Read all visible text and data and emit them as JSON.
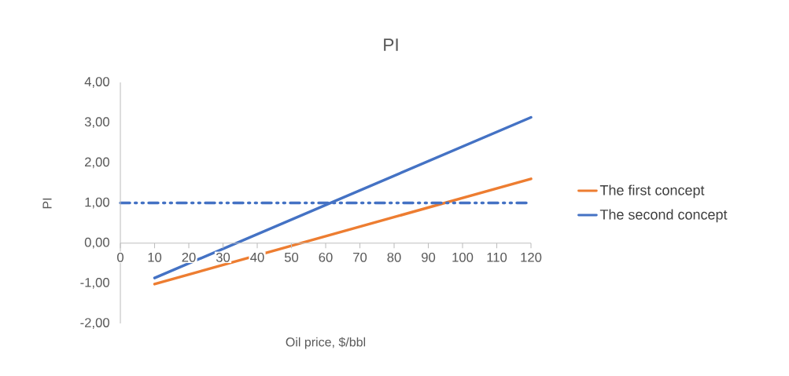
{
  "chart_data": {
    "type": "line",
    "title": "PI",
    "xlabel": "Oil price, $/bbl",
    "ylabel": "PI",
    "series": [
      {
        "name": "The first concept",
        "color": "#ed7d31",
        "values": [
          -1.02,
          1.6
        ]
      },
      {
        "name": "The second concept",
        "color": "#4472c4",
        "values": [
          -0.87,
          3.13
        ]
      }
    ],
    "x": [
      10,
      120
    ],
    "xlim": [
      0,
      120
    ],
    "xticks": [
      0,
      10,
      20,
      30,
      40,
      50,
      60,
      70,
      80,
      90,
      100,
      110,
      120
    ],
    "ylim": [
      -2,
      4
    ],
    "yticks": [
      {
        "value": -2,
        "label": "-2,00"
      },
      {
        "value": -1,
        "label": "-1,00"
      },
      {
        "value": 0,
        "label": "0,00"
      },
      {
        "value": 1,
        "label": "1,00"
      },
      {
        "value": 2,
        "label": "2,00"
      },
      {
        "value": 3,
        "label": "3,00"
      },
      {
        "value": 4,
        "label": "4,00"
      }
    ],
    "ref_lines": [
      {
        "axis": "y",
        "value": 1,
        "color": "#4472c4",
        "line_style": "dashed"
      }
    ],
    "grid": false,
    "legend": "right",
    "marker": "none",
    "line_style": "solid"
  }
}
